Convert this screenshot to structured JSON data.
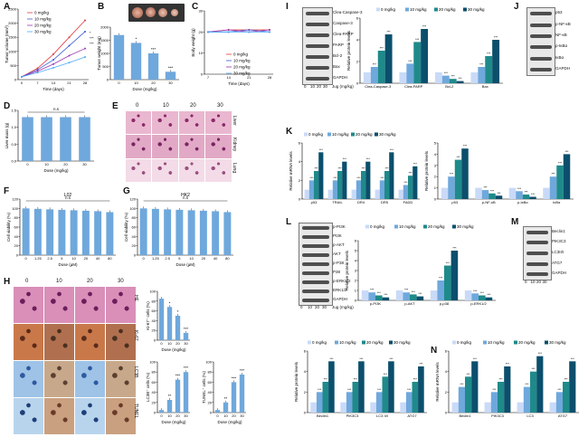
{
  "panels": {
    "A": "A",
    "B": "B",
    "C": "C",
    "D": "D",
    "E": "E",
    "F": "F",
    "G": "G",
    "H": "H",
    "I": "I",
    "J": "J",
    "K": "K",
    "L": "L",
    "M": "M",
    "N": "N"
  },
  "doses": [
    "0 mg/kg",
    "10 mg/kg",
    "20 mg/kg",
    "30 mg/kg"
  ],
  "dose_ticks": [
    "0",
    "10",
    "20",
    "30"
  ],
  "colors": {
    "d0": "#c9daf8",
    "d10": "#6fa8dc",
    "d20": "#1f8a8a",
    "d30": "#0b4f6c",
    "line0": "#e23b3b",
    "line10": "#3b5bdb",
    "line20": "#9c36b5",
    "line30": "#4dabf7"
  },
  "chart_data": [
    {
      "id": "A",
      "type": "line",
      "title": "",
      "xlabel": "Time (days)",
      "ylabel": "Tumor volume (mm³)",
      "x": [
        0,
        7,
        14,
        21,
        28
      ],
      "ylim": [
        0,
        2500
      ],
      "yticks": [
        "0",
        "500",
        "1000",
        "1500",
        "2000",
        "2500"
      ],
      "series": [
        {
          "name": "0 mg/kg",
          "values": [
            100,
            400,
            900,
            1500,
            2100
          ]
        },
        {
          "name": "10 mg/kg",
          "values": [
            100,
            350,
            700,
            1200,
            1700
          ]
        },
        {
          "name": "20 mg/kg",
          "values": [
            100,
            300,
            550,
            850,
            1100
          ]
        },
        {
          "name": "30 mg/kg",
          "values": [
            100,
            250,
            420,
            600,
            800
          ]
        }
      ],
      "annotations": [
        "*",
        "***",
        "***"
      ]
    },
    {
      "id": "B",
      "type": "bar",
      "xlabel": "Dose (mg/kg)",
      "ylabel": "Tumor weight (mg)",
      "categories": [
        "0",
        "10",
        "20",
        "30"
      ],
      "values": [
        1700,
        1400,
        1000,
        300
      ],
      "ylim": [
        0,
        2000
      ],
      "yticks": [
        "0",
        "500",
        "1000",
        "1500",
        "2000"
      ],
      "annotations": [
        "",
        "*",
        "***",
        "***"
      ]
    },
    {
      "id": "C",
      "type": "line",
      "xlabel": "Time (days)",
      "ylabel": "Body weight (g)",
      "x": [
        7,
        14,
        21,
        28
      ],
      "ylim": [
        0,
        30
      ],
      "yticks": [
        "0",
        "10",
        "20",
        "30"
      ],
      "series": [
        {
          "name": "0 mg/kg",
          "values": [
            20,
            21,
            21,
            21
          ]
        },
        {
          "name": "10 mg/kg",
          "values": [
            20,
            20,
            21,
            20
          ]
        },
        {
          "name": "20 mg/kg",
          "values": [
            20,
            21,
            20,
            21
          ]
        },
        {
          "name": "30 mg/kg",
          "values": [
            20,
            20,
            20,
            20
          ]
        }
      ]
    },
    {
      "id": "D",
      "type": "bar",
      "xlabel": "Dose (mg/kg)",
      "ylabel": "Liver mass (g)",
      "categories": [
        "0",
        "10",
        "20",
        "30"
      ],
      "values": [
        1.3,
        1.3,
        1.3,
        1.3
      ],
      "ylim": [
        0,
        1.5
      ],
      "yticks": [
        "0.0",
        "0.5",
        "1.0",
        "1.5"
      ],
      "annotation": "n.s"
    },
    {
      "id": "F",
      "type": "bar",
      "title": "L02",
      "xlabel": "Dose (μM)",
      "ylabel": "Cell viability (%)",
      "categories": [
        "0",
        "1.25",
        "2.5",
        "5",
        "10",
        "20",
        "40",
        "80"
      ],
      "values": [
        100,
        99,
        98,
        97,
        96,
        95,
        94,
        92
      ],
      "ylim": [
        0,
        120
      ],
      "yticks": [
        "0",
        "20",
        "40",
        "60",
        "80",
        "100",
        "120"
      ],
      "annotation": "n.s"
    },
    {
      "id": "G",
      "type": "bar",
      "title": "HK2",
      "xlabel": "Dose (μM)",
      "ylabel": "Cell viability (%)",
      "categories": [
        "0",
        "1.25",
        "2.5",
        "5",
        "10",
        "20",
        "40",
        "80"
      ],
      "values": [
        100,
        99,
        98,
        97,
        96,
        95,
        94,
        92
      ],
      "ylim": [
        0,
        120
      ],
      "yticks": [
        "0",
        "20",
        "40",
        "60",
        "80",
        "100",
        "120"
      ],
      "annotation": "n.s"
    },
    {
      "id": "H1",
      "type": "bar",
      "xlabel": "Dose (mg/kg)",
      "ylabel": "Ki-67⁺ cells (%)",
      "categories": [
        "0",
        "10",
        "20",
        "30"
      ],
      "values": [
        85,
        68,
        50,
        15
      ],
      "ylim": [
        0,
        100
      ],
      "yticks": [
        "0",
        "20",
        "40",
        "60",
        "80",
        "100"
      ],
      "annotations": [
        "",
        "*",
        "*",
        "***"
      ]
    },
    {
      "id": "H2",
      "type": "bar",
      "xlabel": "Dose (mg/kg)",
      "ylabel": "LC3B⁺ cells (%)",
      "categories": [
        "0",
        "10",
        "20",
        "30"
      ],
      "values": [
        5,
        25,
        65,
        80
      ],
      "ylim": [
        0,
        100
      ],
      "yticks": [
        "0",
        "20",
        "40",
        "60",
        "80",
        "100"
      ],
      "annotations": [
        "",
        "**",
        "***",
        "***"
      ]
    },
    {
      "id": "H3",
      "type": "bar",
      "xlabel": "Dose (mg/kg)",
      "ylabel": "TUNEL⁺ cells (%)",
      "categories": [
        "0",
        "10",
        "20",
        "30"
      ],
      "values": [
        5,
        20,
        60,
        75
      ],
      "ylim": [
        0,
        100
      ],
      "yticks": [
        "0",
        "20",
        "40",
        "60",
        "80",
        "100"
      ],
      "annotations": [
        "",
        "**",
        "***",
        "***"
      ]
    },
    {
      "id": "I",
      "type": "bar",
      "ylabel": "Relative protein levels",
      "categories": [
        "Clea-Caspase-3",
        "Clea-PARP",
        "Bcl-2",
        "Bax"
      ],
      "series": [
        {
          "name": "0 mg/kg",
          "values": [
            1.0,
            1.0,
            1.0,
            1.0
          ]
        },
        {
          "name": "10 mg/kg",
          "values": [
            1.5,
            1.8,
            0.7,
            1.5
          ]
        },
        {
          "name": "20 mg/kg",
          "values": [
            3.0,
            3.8,
            0.4,
            2.5
          ]
        },
        {
          "name": "30 mg/kg",
          "values": [
            4.5,
            5.0,
            0.2,
            4.0
          ]
        }
      ],
      "ylim": [
        0,
        6
      ],
      "yticks": [
        "0",
        "2",
        "4",
        "6"
      ]
    },
    {
      "id": "K1",
      "type": "bar",
      "ylabel": "Relative mRNA levels",
      "categories": [
        "p53",
        "TRAIL",
        "DR4",
        "DR5",
        "FADD"
      ],
      "series": [
        {
          "name": "0 mg/kg",
          "values": [
            1,
            1,
            1,
            1,
            1
          ]
        },
        {
          "name": "10 mg/kg",
          "values": [
            2,
            2,
            2,
            2,
            1.5
          ]
        },
        {
          "name": "20 mg/kg",
          "values": [
            3,
            3,
            3,
            3,
            2.5
          ]
        },
        {
          "name": "30 mg/kg",
          "values": [
            5,
            4,
            4,
            5,
            3.5
          ]
        }
      ],
      "ylim": [
        0,
        6
      ],
      "yticks": [
        "0",
        "2",
        "4",
        "6"
      ]
    },
    {
      "id": "K2",
      "type": "bar",
      "ylabel": "Relative protein levels",
      "categories": [
        "p53",
        "p-NF-κB",
        "p-IκBα",
        "IκBα"
      ],
      "series": [
        {
          "name": "0 mg/kg",
          "values": [
            1,
            1,
            1,
            1
          ]
        },
        {
          "name": "10 mg/kg",
          "values": [
            2,
            0.8,
            0.7,
            2
          ]
        },
        {
          "name": "20 mg/kg",
          "values": [
            3.5,
            0.5,
            0.4,
            3
          ]
        },
        {
          "name": "30 mg/kg",
          "values": [
            4.5,
            0.3,
            0.2,
            4
          ]
        }
      ],
      "ylim": [
        0,
        5
      ],
      "yticks": [
        "0",
        "1",
        "2",
        "3",
        "4",
        "5"
      ]
    },
    {
      "id": "L",
      "type": "bar",
      "ylabel": "Relative protein levels",
      "categories": [
        "p-PI3K",
        "p-AKT",
        "p-p38",
        "p-ERK1/2"
      ],
      "series": [
        {
          "name": "0 mg/kg",
          "values": [
            1,
            1,
            1,
            1
          ]
        },
        {
          "name": "10 mg/kg",
          "values": [
            0.8,
            0.8,
            2,
            0.7
          ]
        },
        {
          "name": "20 mg/kg",
          "values": [
            0.5,
            0.6,
            3.5,
            0.5
          ]
        },
        {
          "name": "30 mg/kg",
          "values": [
            0.3,
            0.4,
            5,
            0.3
          ]
        }
      ],
      "ylim": [
        0,
        6
      ],
      "yticks": [
        "0",
        "1",
        "2",
        "3",
        "4",
        "5",
        "6"
      ]
    },
    {
      "id": "N1",
      "type": "bar",
      "ylabel": "Relative protein levels",
      "categories": [
        "Beclin1",
        "PIK3C3",
        "LC3 II/I",
        "ATG7"
      ],
      "series": [
        {
          "name": "0 mg/kg",
          "values": [
            1,
            1,
            1,
            1
          ]
        },
        {
          "name": "10 mg/kg",
          "values": [
            2,
            2,
            2,
            2
          ]
        },
        {
          "name": "20 mg/kg",
          "values": [
            3,
            3,
            3.5,
            3
          ]
        },
        {
          "name": "30 mg/kg",
          "values": [
            5,
            5,
            5,
            4.5
          ]
        }
      ],
      "ylim": [
        0,
        6
      ],
      "yticks": [
        "0",
        "2",
        "4",
        "6"
      ]
    },
    {
      "id": "N2",
      "type": "bar",
      "ylabel": "Relative mRNA levels",
      "categories": [
        "Beclin1",
        "PIK3C3",
        "LC3",
        "ATG7"
      ],
      "series": [
        {
          "name": "0 mg/kg",
          "values": [
            1,
            1,
            1,
            1
          ]
        },
        {
          "name": "10 mg/kg",
          "values": [
            2.5,
            2,
            2.5,
            2
          ]
        },
        {
          "name": "20 mg/kg",
          "values": [
            3.5,
            3,
            4,
            3
          ]
        },
        {
          "name": "30 mg/kg",
          "values": [
            5,
            4.5,
            5.5,
            5
          ]
        }
      ],
      "ylim": [
        0,
        6
      ],
      "yticks": [
        "0",
        "2",
        "4",
        "6"
      ]
    }
  ],
  "blots": {
    "I": {
      "labels": [
        "Clea-Caspase-3",
        "Caspase-3",
        "Clea-PARP",
        "PARP",
        "Bcl-2",
        "Bax",
        "GAPDH"
      ],
      "xlabel": "Jug (mg/kg)",
      "ticks": [
        "0",
        "10",
        "20",
        "30"
      ]
    },
    "J": {
      "labels": [
        "p53",
        "p-NF-κB",
        "NF-κB",
        "p-IκBα",
        "IκBα",
        "GAPDH"
      ]
    },
    "L": {
      "labels": [
        "p-PI3K",
        "PI3K",
        "p-AKT",
        "AKT",
        "p-P38",
        "P38",
        "p-ERK1/2",
        "ERK1/2",
        "GAPDH"
      ],
      "xlabel": "Jug (mg/kg)",
      "ticks": [
        "0",
        "10",
        "20",
        "30"
      ]
    },
    "M": {
      "labels": [
        "Beclin1",
        "PIK3C3",
        "LC3II/I",
        "ATG7",
        "GAPDH"
      ],
      "ticks": [
        "0",
        "10",
        "20",
        "30"
      ]
    }
  },
  "histology": {
    "E": {
      "cols": [
        "0",
        "10",
        "20",
        "30"
      ],
      "rows": [
        "Liver",
        "Kidney",
        "Lung"
      ]
    },
    "H": {
      "cols": [
        "0",
        "10",
        "20",
        "30"
      ],
      "rows": [
        "HE",
        "Ki-67",
        "LC3B",
        "TUNEL"
      ]
    }
  }
}
